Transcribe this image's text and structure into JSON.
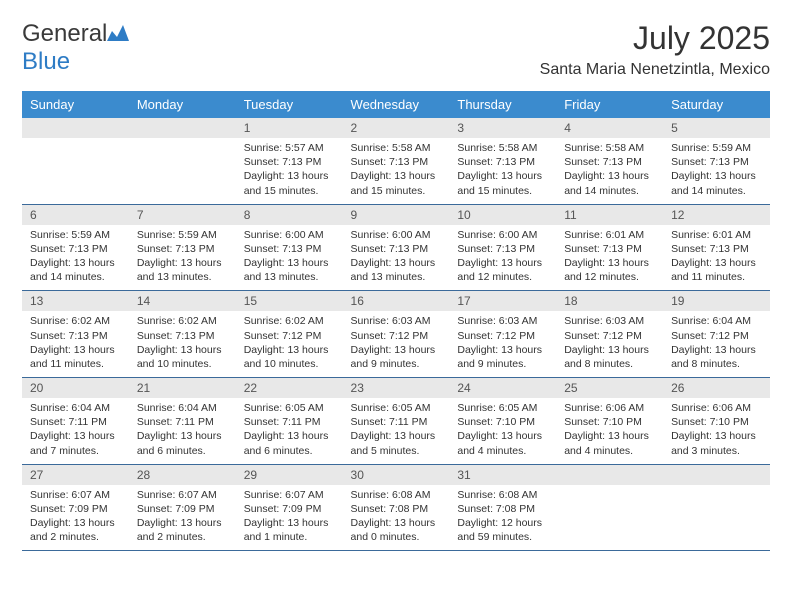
{
  "brand": {
    "name_part1": "General",
    "name_part2": "Blue"
  },
  "title": "July 2025",
  "location": "Santa Maria Nenetzintla, Mexico",
  "colors": {
    "header_bg": "#3b8bce",
    "day_num_bg": "#e8e8e8",
    "row_border": "#3b6a9a",
    "brand_blue": "#2e7cc5"
  },
  "weekdays": [
    "Sunday",
    "Monday",
    "Tuesday",
    "Wednesday",
    "Thursday",
    "Friday",
    "Saturday"
  ],
  "cells": [
    [
      null,
      null,
      {
        "n": "1",
        "sr": "5:57 AM",
        "ss": "7:13 PM",
        "dl": "13 hours and 15 minutes."
      },
      {
        "n": "2",
        "sr": "5:58 AM",
        "ss": "7:13 PM",
        "dl": "13 hours and 15 minutes."
      },
      {
        "n": "3",
        "sr": "5:58 AM",
        "ss": "7:13 PM",
        "dl": "13 hours and 15 minutes."
      },
      {
        "n": "4",
        "sr": "5:58 AM",
        "ss": "7:13 PM",
        "dl": "13 hours and 14 minutes."
      },
      {
        "n": "5",
        "sr": "5:59 AM",
        "ss": "7:13 PM",
        "dl": "13 hours and 14 minutes."
      }
    ],
    [
      {
        "n": "6",
        "sr": "5:59 AM",
        "ss": "7:13 PM",
        "dl": "13 hours and 14 minutes."
      },
      {
        "n": "7",
        "sr": "5:59 AM",
        "ss": "7:13 PM",
        "dl": "13 hours and 13 minutes."
      },
      {
        "n": "8",
        "sr": "6:00 AM",
        "ss": "7:13 PM",
        "dl": "13 hours and 13 minutes."
      },
      {
        "n": "9",
        "sr": "6:00 AM",
        "ss": "7:13 PM",
        "dl": "13 hours and 13 minutes."
      },
      {
        "n": "10",
        "sr": "6:00 AM",
        "ss": "7:13 PM",
        "dl": "13 hours and 12 minutes."
      },
      {
        "n": "11",
        "sr": "6:01 AM",
        "ss": "7:13 PM",
        "dl": "13 hours and 12 minutes."
      },
      {
        "n": "12",
        "sr": "6:01 AM",
        "ss": "7:13 PM",
        "dl": "13 hours and 11 minutes."
      }
    ],
    [
      {
        "n": "13",
        "sr": "6:02 AM",
        "ss": "7:13 PM",
        "dl": "13 hours and 11 minutes."
      },
      {
        "n": "14",
        "sr": "6:02 AM",
        "ss": "7:13 PM",
        "dl": "13 hours and 10 minutes."
      },
      {
        "n": "15",
        "sr": "6:02 AM",
        "ss": "7:12 PM",
        "dl": "13 hours and 10 minutes."
      },
      {
        "n": "16",
        "sr": "6:03 AM",
        "ss": "7:12 PM",
        "dl": "13 hours and 9 minutes."
      },
      {
        "n": "17",
        "sr": "6:03 AM",
        "ss": "7:12 PM",
        "dl": "13 hours and 9 minutes."
      },
      {
        "n": "18",
        "sr": "6:03 AM",
        "ss": "7:12 PM",
        "dl": "13 hours and 8 minutes."
      },
      {
        "n": "19",
        "sr": "6:04 AM",
        "ss": "7:12 PM",
        "dl": "13 hours and 8 minutes."
      }
    ],
    [
      {
        "n": "20",
        "sr": "6:04 AM",
        "ss": "7:11 PM",
        "dl": "13 hours and 7 minutes."
      },
      {
        "n": "21",
        "sr": "6:04 AM",
        "ss": "7:11 PM",
        "dl": "13 hours and 6 minutes."
      },
      {
        "n": "22",
        "sr": "6:05 AM",
        "ss": "7:11 PM",
        "dl": "13 hours and 6 minutes."
      },
      {
        "n": "23",
        "sr": "6:05 AM",
        "ss": "7:11 PM",
        "dl": "13 hours and 5 minutes."
      },
      {
        "n": "24",
        "sr": "6:05 AM",
        "ss": "7:10 PM",
        "dl": "13 hours and 4 minutes."
      },
      {
        "n": "25",
        "sr": "6:06 AM",
        "ss": "7:10 PM",
        "dl": "13 hours and 4 minutes."
      },
      {
        "n": "26",
        "sr": "6:06 AM",
        "ss": "7:10 PM",
        "dl": "13 hours and 3 minutes."
      }
    ],
    [
      {
        "n": "27",
        "sr": "6:07 AM",
        "ss": "7:09 PM",
        "dl": "13 hours and 2 minutes."
      },
      {
        "n": "28",
        "sr": "6:07 AM",
        "ss": "7:09 PM",
        "dl": "13 hours and 2 minutes."
      },
      {
        "n": "29",
        "sr": "6:07 AM",
        "ss": "7:09 PM",
        "dl": "13 hours and 1 minute."
      },
      {
        "n": "30",
        "sr": "6:08 AM",
        "ss": "7:08 PM",
        "dl": "13 hours and 0 minutes."
      },
      {
        "n": "31",
        "sr": "6:08 AM",
        "ss": "7:08 PM",
        "dl": "12 hours and 59 minutes."
      },
      null,
      null
    ]
  ],
  "labels": {
    "sunrise": "Sunrise:",
    "sunset": "Sunset:",
    "daylight": "Daylight:"
  }
}
